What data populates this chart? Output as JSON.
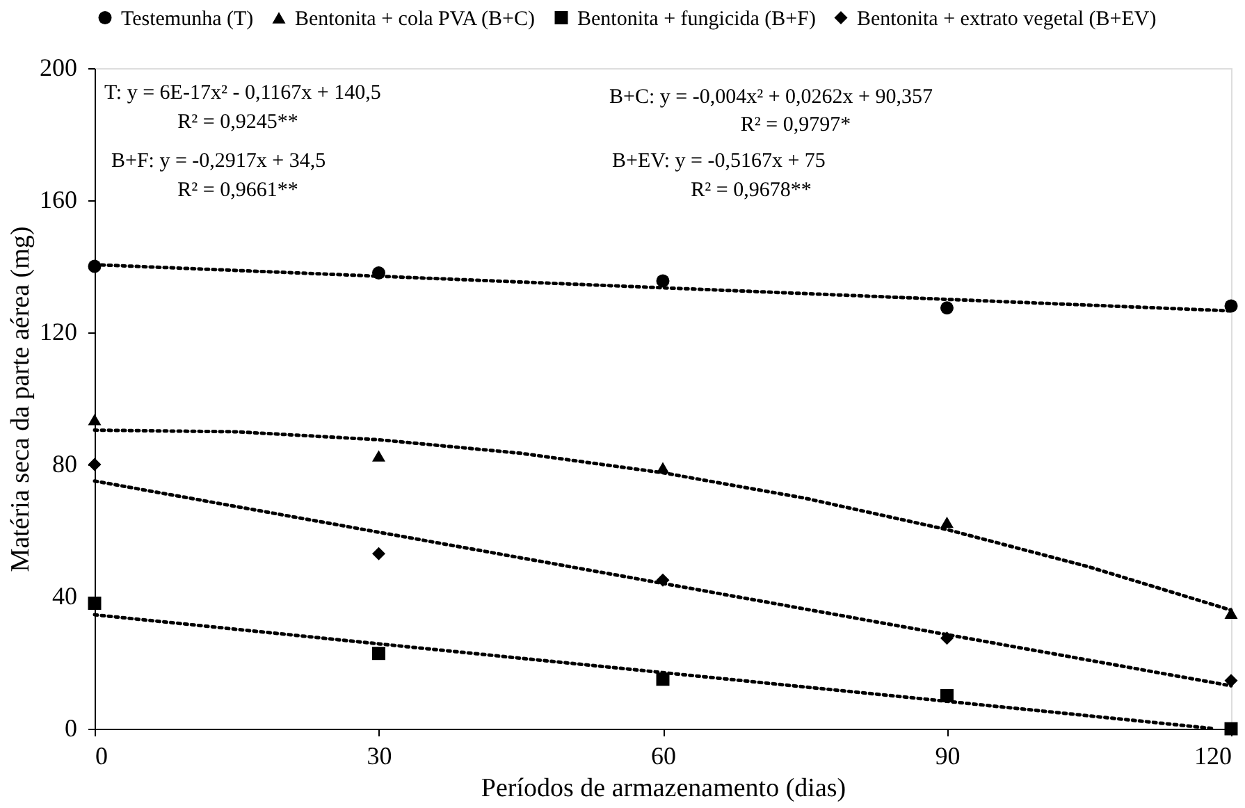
{
  "chart_data": {
    "type": "scatter",
    "xlabel": "Períodos de armazenamento (dias)",
    "ylabel": "Matéria seca da parte aérea (mg)",
    "xlim": [
      0,
      120
    ],
    "xticks": [
      0,
      30,
      60,
      90,
      120
    ],
    "ylim": [
      0,
      200
    ],
    "yticks": [
      0,
      40,
      80,
      120,
      160,
      200
    ],
    "grid": false,
    "legend": "top",
    "x": [
      0,
      30,
      60,
      90,
      120
    ],
    "series": [
      {
        "name": "Testemunha (T)",
        "color": "#000000",
        "marker": "circle",
        "values": [
          140,
          138,
          135.6,
          127.4,
          128
        ]
      },
      {
        "name": "Bentonita + cola PVA (B+C)",
        "color": "#000000",
        "marker": "triangle",
        "values": [
          93.6,
          82.6,
          79,
          62.5,
          35
        ]
      },
      {
        "name": "Bentonita + fungicida (B+F)",
        "color": "#000000",
        "marker": "square",
        "values": [
          38,
          22.8,
          15,
          10,
          0
        ]
      },
      {
        "name": "Bentonita + extrato vegetal (B+EV)",
        "color": "#000000",
        "marker": "diamond",
        "values": [
          80,
          53,
          45,
          27.4,
          14.6
        ]
      },
      {
        "type": "line",
        "color": "#000000",
        "line_style": "dotted",
        "x": [
          0,
          30,
          60,
          90,
          120
        ],
        "values": [
          140.5,
          137,
          133.5,
          130,
          126.5
        ]
      },
      {
        "type": "line",
        "color": "#000000",
        "line_style": "dotted",
        "x": [
          0,
          15,
          30,
          45,
          60,
          75,
          90,
          105,
          120
        ],
        "values": [
          90.4,
          89.9,
          87.5,
          83.4,
          77.5,
          69.8,
          60.3,
          49,
          35.9
        ]
      },
      {
        "type": "line",
        "color": "#000000",
        "line_style": "dotted",
        "x": [
          0,
          30,
          60,
          90,
          118
        ],
        "values": [
          34.5,
          25.7,
          17,
          8.3,
          0.1
        ]
      },
      {
        "type": "line",
        "color": "#000000",
        "line_style": "dotted",
        "x": [
          0,
          30,
          60,
          90,
          120
        ],
        "values": [
          75,
          59.5,
          44,
          28.5,
          13
        ]
      }
    ],
    "annotations": [
      "T: y = 6E-17x² - 0,1167x + 140,5",
      "R² = 0,9245**",
      "B+F: y = -0,2917x + 34,5",
      "R² = 0,9661**",
      "B+C: y = -0,004x² + 0,0262x + 90,357",
      "R² = 0,9797*",
      "B+EV: y = -0,5167x + 75",
      "R² = 0,9678**"
    ]
  }
}
